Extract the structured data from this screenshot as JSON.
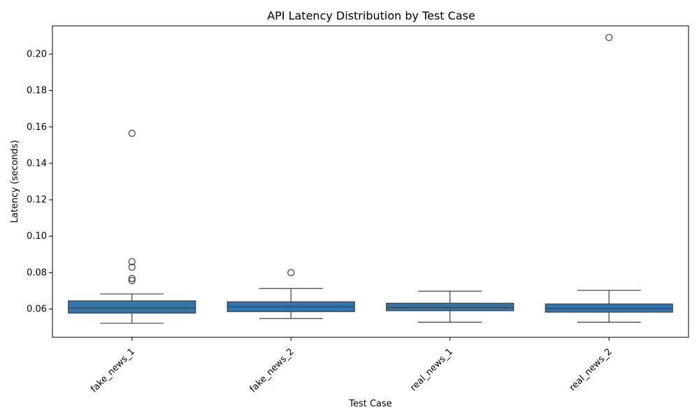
{
  "chart_data": {
    "type": "box",
    "title": "API Latency Distribution by Test Case",
    "xlabel": "Test Case",
    "ylabel": "Latency (seconds)",
    "ylim": [
      0.0445,
      0.2155
    ],
    "yticks": [
      0.06,
      0.08,
      0.1,
      0.12,
      0.14,
      0.16,
      0.18,
      0.2
    ],
    "ytick_labels": [
      "0.06",
      "0.08",
      "0.10",
      "0.12",
      "0.14",
      "0.16",
      "0.18",
      "0.20"
    ],
    "box_color": "#2f75b0",
    "line_color": "#3f3f3f",
    "categories": [
      "fake_news_1",
      "fake_news_2",
      "real_news_1",
      "real_news_2"
    ],
    "boxes": [
      {
        "whisker_low": 0.0522,
        "q1": 0.0578,
        "median": 0.0607,
        "q3": 0.0645,
        "whisker_high": 0.0683,
        "outliers": [
          0.0757,
          0.0768,
          0.083,
          0.086,
          0.1565
        ]
      },
      {
        "whisker_low": 0.0548,
        "q1": 0.0586,
        "median": 0.0613,
        "q3": 0.064,
        "whisker_high": 0.0713,
        "outliers": [
          0.08
        ]
      },
      {
        "whisker_low": 0.0528,
        "q1": 0.0591,
        "median": 0.0608,
        "q3": 0.0632,
        "whisker_high": 0.0698,
        "outliers": []
      },
      {
        "whisker_low": 0.0528,
        "q1": 0.0583,
        "median": 0.0603,
        "q3": 0.0628,
        "whisker_high": 0.0703,
        "outliers": [
          0.2091
        ]
      }
    ]
  }
}
